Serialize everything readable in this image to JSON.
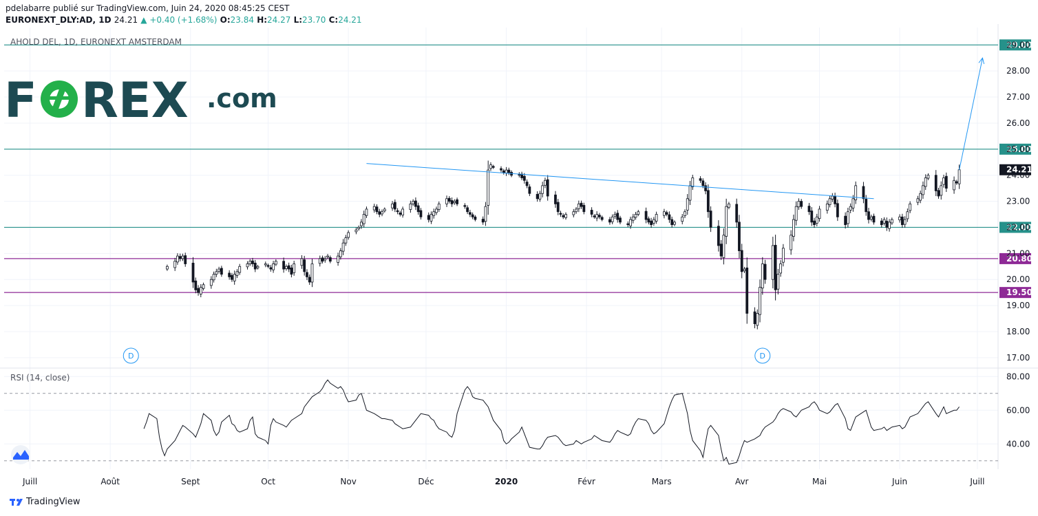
{
  "header": {
    "line1": "pdelabarre publié sur TradingView.com, Juin 24, 2020 08:45:25 CEST",
    "symbol": "EURONEXT_DLY:AD, 1D",
    "last": "24.21",
    "change": "▲ +0.40 (+1.68%)",
    "o_label": "O:",
    "o": "23.84",
    "h_label": "H:",
    "h": "24.27",
    "l_label": "L:",
    "l": "23.70",
    "c_label": "C:",
    "c": "24.21"
  },
  "pane_title": "AHOLD DEL, 1D, EURONEXT AMSTERDAM",
  "logo": {
    "text": "FOREX.com",
    "fo": "F",
    "ex": "REX",
    "dotcom": ".com",
    "color": "#1d4a52",
    "accent": "#23b04a"
  },
  "rsi_title": "RSI (14, close)",
  "footer_brand": "TradingView",
  "colors": {
    "up": "#ffffff",
    "down": "#131722",
    "teal": "#26918a",
    "purple": "#8e2a96",
    "trend": "#2196f3",
    "rsi": "#131722"
  },
  "chart_data": [
    {
      "type": "candlestick",
      "title": "AHOLD DEL, 1D, EURONEXT AMSTERDAM",
      "ylim": [
        16.6,
        29.8
      ],
      "y_ticks": [
        17,
        18,
        19,
        20,
        21,
        22,
        23,
        24,
        25,
        26,
        27,
        28,
        29
      ],
      "x_tick_labels": [
        "Juill",
        "Août",
        "Sept",
        "Oct",
        "Nov",
        "Déc",
        "2020",
        "Févr",
        "Mars",
        "Avr",
        "Mai",
        "Juin",
        "Juill"
      ],
      "last_price": 24.21,
      "horizontal_levels": [
        {
          "value": 29.0,
          "label": "29.00",
          "color": "teal"
        },
        {
          "value": 25.0,
          "label": "25.00",
          "color": "teal"
        },
        {
          "value": 22.0,
          "label": "22.00",
          "color": "teal"
        },
        {
          "value": 20.8,
          "label": "20.80",
          "color": "purple"
        },
        {
          "value": 19.5,
          "label": "19.50",
          "color": "purple"
        }
      ],
      "trendline": [
        [
          "2019-11-08",
          24.45
        ],
        [
          "2020-05-22",
          23.1
        ]
      ],
      "arrow": [
        [
          "2020-06-24",
          24.2
        ],
        [
          "2020-07-03",
          28.5
        ]
      ],
      "dividend_marks": [
        {
          "date": "2019-08-09",
          "label": "D"
        },
        {
          "date": "2020-04-09",
          "label": "D"
        }
      ],
      "closes": [
        20.5,
        20.7,
        20.9,
        20.8,
        20.9,
        20.6,
        19.9,
        19.6,
        19.5,
        19.7,
        19.8,
        20.0,
        20.2,
        20.3,
        20.4,
        20.2,
        20.1,
        20.0,
        20.2,
        20.3,
        20.5,
        20.6,
        20.7,
        20.6,
        20.4,
        20.5,
        20.6,
        20.5,
        20.4,
        20.6,
        20.7,
        20.4,
        20.5,
        20.4,
        20.2,
        20.6,
        20.8,
        20.3,
        20.1,
        19.9,
        20.6,
        20.8,
        20.7,
        20.8,
        20.9,
        20.7,
        20.9,
        21.1,
        21.4,
        21.6,
        21.8,
        21.9,
        22.0,
        22.2,
        22.5,
        22.7,
        22.8,
        22.6,
        22.5,
        22.6,
        22.7,
        22.9,
        22.7,
        22.6,
        22.5,
        22.7,
        22.9,
        23.0,
        22.8,
        22.6,
        22.4,
        22.3,
        22.5,
        22.6,
        22.7,
        22.9,
        23.1,
        23.0,
        22.9,
        23.0,
        22.9,
        22.8,
        22.6,
        22.5,
        22.4,
        22.3,
        22.2,
        22.8,
        24.2,
        24.4,
        24.3,
        24.2,
        24.1,
        24.2,
        24.1,
        24.0,
        24.0,
        23.9,
        23.8,
        23.6,
        23.3,
        23.1,
        23.3,
        23.6,
        23.8,
        23.2,
        22.9,
        22.6,
        22.5,
        22.4,
        22.5,
        22.6,
        22.7,
        22.9,
        22.8,
        22.6,
        22.5,
        22.4,
        22.5,
        22.4,
        22.3,
        22.2,
        22.4,
        22.5,
        22.3,
        22.2,
        22.1,
        22.3,
        22.4,
        22.5,
        22.6,
        22.3,
        22.2,
        22.1,
        22.3,
        22.5,
        22.6,
        22.5,
        22.3,
        22.1,
        22.2,
        22.4,
        22.6,
        23.1,
        23.6,
        23.9,
        23.8,
        23.6,
        23.4,
        22.6,
        22.0,
        21.3,
        20.9,
        21.7,
        22.8,
        22.9,
        22.2,
        21.1,
        20.3,
        20.4,
        18.7,
        18.3,
        18.7,
        19.7,
        20.6,
        20.0,
        21.3,
        19.6,
        20.2,
        20.6,
        21.2,
        21.7,
        22.3,
        22.8,
        23.0,
        22.8,
        22.6,
        22.2,
        22.1,
        22.4,
        22.7,
        22.9,
        23.1,
        23.2,
        22.9,
        22.4,
        22.1,
        22.6,
        22.8,
        23.1,
        23.6,
        23.1,
        22.6,
        22.3,
        22.4,
        22.2,
        22.1,
        22.3,
        22.0,
        22.2,
        22.3,
        22.4,
        22.1,
        22.3,
        22.6,
        22.9,
        23.1,
        23.3,
        23.6,
        23.9,
        24.0,
        23.4,
        23.2,
        23.6,
        23.9,
        23.5,
        23.8,
        23.7,
        24.21
      ]
    },
    {
      "type": "line",
      "title": "RSI (14, close)",
      "ylim": [
        25,
        85
      ],
      "y_ticks": [
        40,
        60,
        80
      ],
      "bands": [
        30,
        70
      ],
      "values": [
        49,
        53,
        58,
        55,
        44,
        37,
        33,
        37,
        42,
        45,
        48,
        51,
        50,
        46,
        44,
        48,
        52,
        58,
        54,
        48,
        45,
        47,
        53,
        57,
        52,
        51,
        48,
        47,
        49,
        54,
        56,
        46,
        44,
        42,
        40,
        51,
        55,
        53,
        51,
        50,
        52,
        54,
        55,
        58,
        62,
        64,
        66,
        68,
        71,
        73,
        76,
        78,
        76,
        73,
        74,
        72,
        68,
        65,
        66,
        69,
        70,
        65,
        60,
        58,
        57,
        56,
        55,
        55,
        54,
        52,
        51,
        50,
        49,
        50,
        52,
        54,
        56,
        58,
        57,
        55,
        54,
        51,
        49,
        47,
        45,
        44,
        48,
        58,
        72,
        74,
        72,
        68,
        67,
        66,
        64,
        62,
        58,
        54,
        48,
        42,
        40,
        41,
        43,
        47,
        50,
        46,
        42,
        38,
        37,
        37,
        39,
        42,
        44,
        45,
        44,
        42,
        40,
        39,
        40,
        42,
        41,
        40,
        41,
        43,
        45,
        44,
        43,
        42,
        41,
        43,
        46,
        48,
        47,
        45,
        46,
        50,
        53,
        55,
        54,
        52,
        48,
        46,
        47,
        52,
        57,
        62,
        66,
        69,
        70,
        64,
        58,
        48,
        42,
        36,
        32,
        41,
        49,
        51,
        45,
        37,
        30,
        32,
        28,
        29,
        33,
        38,
        42,
        41,
        43,
        44,
        45,
        48,
        50,
        53,
        55,
        58,
        60,
        61,
        59,
        57,
        56,
        58,
        60,
        62,
        64,
        65,
        63,
        60,
        58,
        59,
        61,
        63,
        64,
        55,
        49,
        48,
        52,
        56,
        59,
        60,
        55,
        50,
        48,
        49,
        50,
        48,
        49,
        50,
        51,
        49,
        50,
        53,
        56,
        58,
        60,
        62,
        64,
        65,
        58,
        56,
        59,
        62,
        58,
        60,
        60,
        62
      ]
    }
  ]
}
